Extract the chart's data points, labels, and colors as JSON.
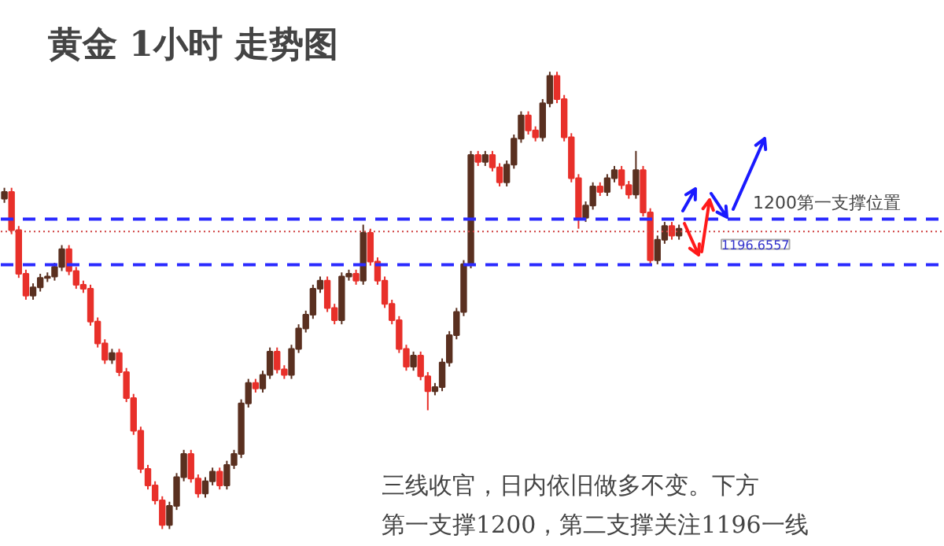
{
  "chart_data": {
    "type": "candlestick",
    "title": "黄金 1小时 走势图",
    "annotations": [
      "三线收官，日内依旧做多不变。下方",
      "第一支撑1200，第二支撑关注1196一线"
    ],
    "ylim": [
      1176,
      1216
    ],
    "tick_labels": false,
    "grid": false,
    "colors": [
      "#5a3020",
      "#e8302a",
      "#e8302a",
      "#e8302a",
      "#5a3020",
      "#5a3020",
      "#5a3020",
      "#5a3020",
      "#5a3020",
      "#e8302a",
      "#e8302a",
      "#e8302a",
      "#e8302a",
      "#e8302a",
      "#e8302a",
      "#5a3020",
      "#e8302a",
      "#e8302a",
      "#e8302a",
      "#e8302a",
      "#e8302a",
      "#e8302a",
      "#e8302a",
      "#5a3020",
      "#5a3020",
      "#5a3020",
      "#e8302a",
      "#e8302a",
      "#5a3020",
      "#5a3020",
      "#e8302a",
      "#5a3020",
      "#5a3020",
      "#5a3020",
      "#5a3020",
      "#e8302a",
      "#5a3020",
      "#5a3020",
      "#e8302a",
      "#e8302a",
      "#5a3020",
      "#5a3020",
      "#5a3020",
      "#5a3020",
      "#5a3020",
      "#e8302a",
      "#e8302a",
      "#5a3020",
      "#5a3020",
      "#e8302a",
      "#5a3020",
      "#e8302a",
      "#e8302a",
      "#e8302a",
      "#e8302a",
      "#e8302a",
      "#e8302a",
      "#5a3020",
      "#e8302a",
      "#e8302a",
      "#5a3020",
      "#5a3020",
      "#5a3020",
      "#5a3020",
      "#5a3020",
      "#5a3020",
      "#e8302a",
      "#5a3020",
      "#e8302a",
      "#e8302a",
      "#5a3020",
      "#5a3020",
      "#5a3020",
      "#e8302a",
      "#e8302a",
      "#5a3020",
      "#5a3020",
      "#e8302a",
      "#e8302a",
      "#e8302a",
      "#e8302a",
      "#5a3020",
      "#5a3020",
      "#e8302a",
      "#5a3020",
      "#5a3020",
      "#e8302a",
      "#e8302a",
      "#5a3020",
      "#e8302a",
      "#e8302a",
      "#5a3020",
      "#5a3020",
      "#e8302a",
      "#5a3020"
    ],
    "ref_lines": [
      {
        "axis": "y",
        "value": 1200,
        "label": "1200第一支撑位置",
        "color": "#2b2bff",
        "line_style": "dashed"
      },
      {
        "axis": "y",
        "value": 1196.6557,
        "label": "1196.6557",
        "color": "#2b2bff",
        "line_style": "dashed"
      },
      {
        "axis": "y",
        "value": 1199.1,
        "color": "#d04040",
        "line_style": "dotted"
      }
    ],
    "categories": [
      null,
      null,
      null,
      null,
      null,
      null,
      null,
      null,
      null,
      null,
      null,
      null,
      null,
      null,
      null,
      null,
      null,
      null,
      null,
      null,
      null,
      null,
      null,
      null,
      null,
      null,
      null,
      null,
      null,
      null,
      null,
      null,
      null,
      null,
      null,
      null,
      null,
      null,
      null,
      null,
      null,
      null,
      null,
      null,
      null,
      null,
      null,
      null,
      null,
      null,
      null,
      null,
      null,
      null,
      null,
      null,
      null,
      null,
      null,
      null,
      null,
      null,
      null,
      null,
      null,
      null,
      null,
      null,
      null,
      null,
      null,
      null,
      null,
      null,
      null,
      null,
      null,
      null,
      null,
      null,
      null,
      null,
      null,
      null,
      null,
      null,
      null,
      null,
      null,
      null,
      null,
      null,
      null,
      null,
      null
    ],
    "ohlc": [
      [
        1201.5,
        1202.3,
        1201.2,
        1202.0
      ],
      [
        1202.0,
        1202.3,
        1198.9,
        1199.2
      ],
      [
        1199.2,
        1199.5,
        1195.7,
        1196.0
      ],
      [
        1196.0,
        1196.3,
        1194.1,
        1194.4
      ],
      [
        1194.4,
        1195.3,
        1194.1,
        1195.0
      ],
      [
        1195.0,
        1196.0,
        1194.7,
        1195.7
      ],
      [
        1195.7,
        1196.1,
        1195.4,
        1195.8
      ],
      [
        1195.8,
        1196.8,
        1195.5,
        1196.5
      ],
      [
        1196.5,
        1198.1,
        1196.2,
        1197.8
      ],
      [
        1197.8,
        1198.1,
        1195.9,
        1196.2
      ],
      [
        1196.2,
        1196.5,
        1194.9,
        1195.2
      ],
      [
        1195.2,
        1195.5,
        1194.6,
        1194.9
      ],
      [
        1194.9,
        1195.2,
        1192.2,
        1192.5
      ],
      [
        1192.5,
        1192.8,
        1190.6,
        1190.9
      ],
      [
        1190.9,
        1191.2,
        1189.4,
        1189.7
      ],
      [
        1189.7,
        1190.5,
        1189.4,
        1190.2
      ],
      [
        1190.2,
        1190.5,
        1188.5,
        1188.8
      ],
      [
        1188.8,
        1189.1,
        1186.6,
        1186.9
      ],
      [
        1186.9,
        1187.2,
        1184.2,
        1184.5
      ],
      [
        1184.5,
        1184.8,
        1181.4,
        1181.7
      ],
      [
        1181.7,
        1182.0,
        1180.2,
        1180.5
      ],
      [
        1180.5,
        1180.8,
        1179.1,
        1179.4
      ],
      [
        1179.4,
        1179.7,
        1177.3,
        1177.6
      ],
      [
        1177.6,
        1179.3,
        1177.3,
        1179.0
      ],
      [
        1179.0,
        1181.4,
        1178.7,
        1181.1
      ],
      [
        1181.1,
        1183.1,
        1180.8,
        1182.8
      ],
      [
        1182.8,
        1183.1,
        1180.7,
        1181.0
      ],
      [
        1181.0,
        1181.3,
        1179.6,
        1179.9
      ],
      [
        1179.9,
        1181.1,
        1179.6,
        1180.8
      ],
      [
        1180.8,
        1181.8,
        1180.5,
        1181.5
      ],
      [
        1181.5,
        1181.8,
        1180.2,
        1180.5
      ],
      [
        1180.5,
        1182.3,
        1180.2,
        1182.0
      ],
      [
        1182.0,
        1183.1,
        1181.7,
        1182.8
      ],
      [
        1182.8,
        1186.8,
        1182.5,
        1186.5
      ],
      [
        1186.5,
        1188.3,
        1186.2,
        1188.0
      ],
      [
        1188.0,
        1188.3,
        1187.3,
        1187.6
      ],
      [
        1187.6,
        1188.9,
        1187.3,
        1188.6
      ],
      [
        1188.6,
        1190.6,
        1188.3,
        1190.3
      ],
      [
        1190.3,
        1190.6,
        1188.7,
        1189.0
      ],
      [
        1189.0,
        1189.3,
        1188.3,
        1188.6
      ],
      [
        1188.6,
        1190.8,
        1188.3,
        1190.5
      ],
      [
        1190.5,
        1192.3,
        1190.2,
        1192.0
      ],
      [
        1192.0,
        1193.3,
        1191.7,
        1193.0
      ],
      [
        1193.0,
        1195.2,
        1192.7,
        1194.9
      ],
      [
        1194.9,
        1195.8,
        1194.6,
        1195.5
      ],
      [
        1195.5,
        1195.8,
        1193.2,
        1193.5
      ],
      [
        1193.5,
        1193.8,
        1192.3,
        1192.6
      ],
      [
        1192.6,
        1196.1,
        1192.3,
        1195.8
      ],
      [
        1195.8,
        1196.3,
        1195.5,
        1196.0
      ],
      [
        1196.0,
        1196.3,
        1195.2,
        1195.5
      ],
      [
        1195.5,
        1199.6,
        1195.2,
        1199.0
      ],
      [
        1199.0,
        1199.3,
        1196.6,
        1196.9
      ],
      [
        1196.9,
        1197.2,
        1195.2,
        1195.5
      ],
      [
        1195.5,
        1195.8,
        1193.5,
        1193.8
      ],
      [
        1193.8,
        1194.1,
        1192.3,
        1192.6
      ],
      [
        1192.6,
        1192.9,
        1190.2,
        1190.5
      ],
      [
        1190.5,
        1190.8,
        1188.9,
        1189.2
      ],
      [
        1189.2,
        1190.3,
        1188.9,
        1190.0
      ],
      [
        1190.0,
        1190.3,
        1188.2,
        1188.5
      ],
      [
        1188.5,
        1188.8,
        1186.0,
        1187.4
      ],
      [
        1187.4,
        1188.0,
        1187.1,
        1187.7
      ],
      [
        1187.7,
        1189.8,
        1187.4,
        1189.5
      ],
      [
        1189.5,
        1191.8,
        1189.2,
        1191.5
      ],
      [
        1191.5,
        1193.5,
        1191.2,
        1193.2
      ],
      [
        1193.2,
        1197.0,
        1192.9,
        1196.7
      ],
      [
        1196.7,
        1205.0,
        1196.4,
        1204.7
      ],
      [
        1204.7,
        1205.0,
        1203.9,
        1204.2
      ],
      [
        1204.2,
        1205.0,
        1203.9,
        1204.7
      ],
      [
        1204.7,
        1205.0,
        1203.5,
        1203.8
      ],
      [
        1203.8,
        1204.1,
        1202.4,
        1202.7
      ],
      [
        1202.7,
        1204.3,
        1202.4,
        1204.0
      ],
      [
        1204.0,
        1206.2,
        1203.7,
        1205.9
      ],
      [
        1205.9,
        1207.9,
        1205.6,
        1207.6
      ],
      [
        1207.6,
        1207.9,
        1206.2,
        1206.5
      ],
      [
        1206.5,
        1206.8,
        1205.7,
        1206.0
      ],
      [
        1206.0,
        1208.8,
        1205.7,
        1208.5
      ],
      [
        1208.5,
        1210.8,
        1208.2,
        1210.5
      ],
      [
        1210.5,
        1210.8,
        1208.5,
        1208.8
      ],
      [
        1208.8,
        1209.1,
        1205.7,
        1206.0
      ],
      [
        1206.0,
        1206.3,
        1202.7,
        1203.0
      ],
      [
        1203.0,
        1203.3,
        1199.3,
        1200.1
      ],
      [
        1200.1,
        1201.3,
        1199.8,
        1201.0
      ],
      [
        1201.0,
        1202.7,
        1200.7,
        1202.4
      ],
      [
        1202.4,
        1202.7,
        1201.7,
        1202.0
      ],
      [
        1202.0,
        1203.3,
        1201.7,
        1203.0
      ],
      [
        1203.0,
        1203.9,
        1202.7,
        1203.6
      ],
      [
        1203.6,
        1203.9,
        1202.2,
        1202.5
      ],
      [
        1202.5,
        1202.8,
        1201.5,
        1201.8
      ],
      [
        1201.8,
        1205.0,
        1201.5,
        1203.6
      ],
      [
        1203.6,
        1203.9,
        1200.2,
        1200.5
      ],
      [
        1200.5,
        1200.8,
        1196.7,
        1197.0
      ],
      [
        1197.0,
        1198.8,
        1196.7,
        1198.5
      ],
      [
        1198.5,
        1199.8,
        1198.2,
        1199.5
      ],
      [
        1199.5,
        1199.8,
        1198.5,
        1198.8
      ],
      [
        1198.8,
        1199.6,
        1198.5,
        1199.3
      ]
    ]
  }
}
